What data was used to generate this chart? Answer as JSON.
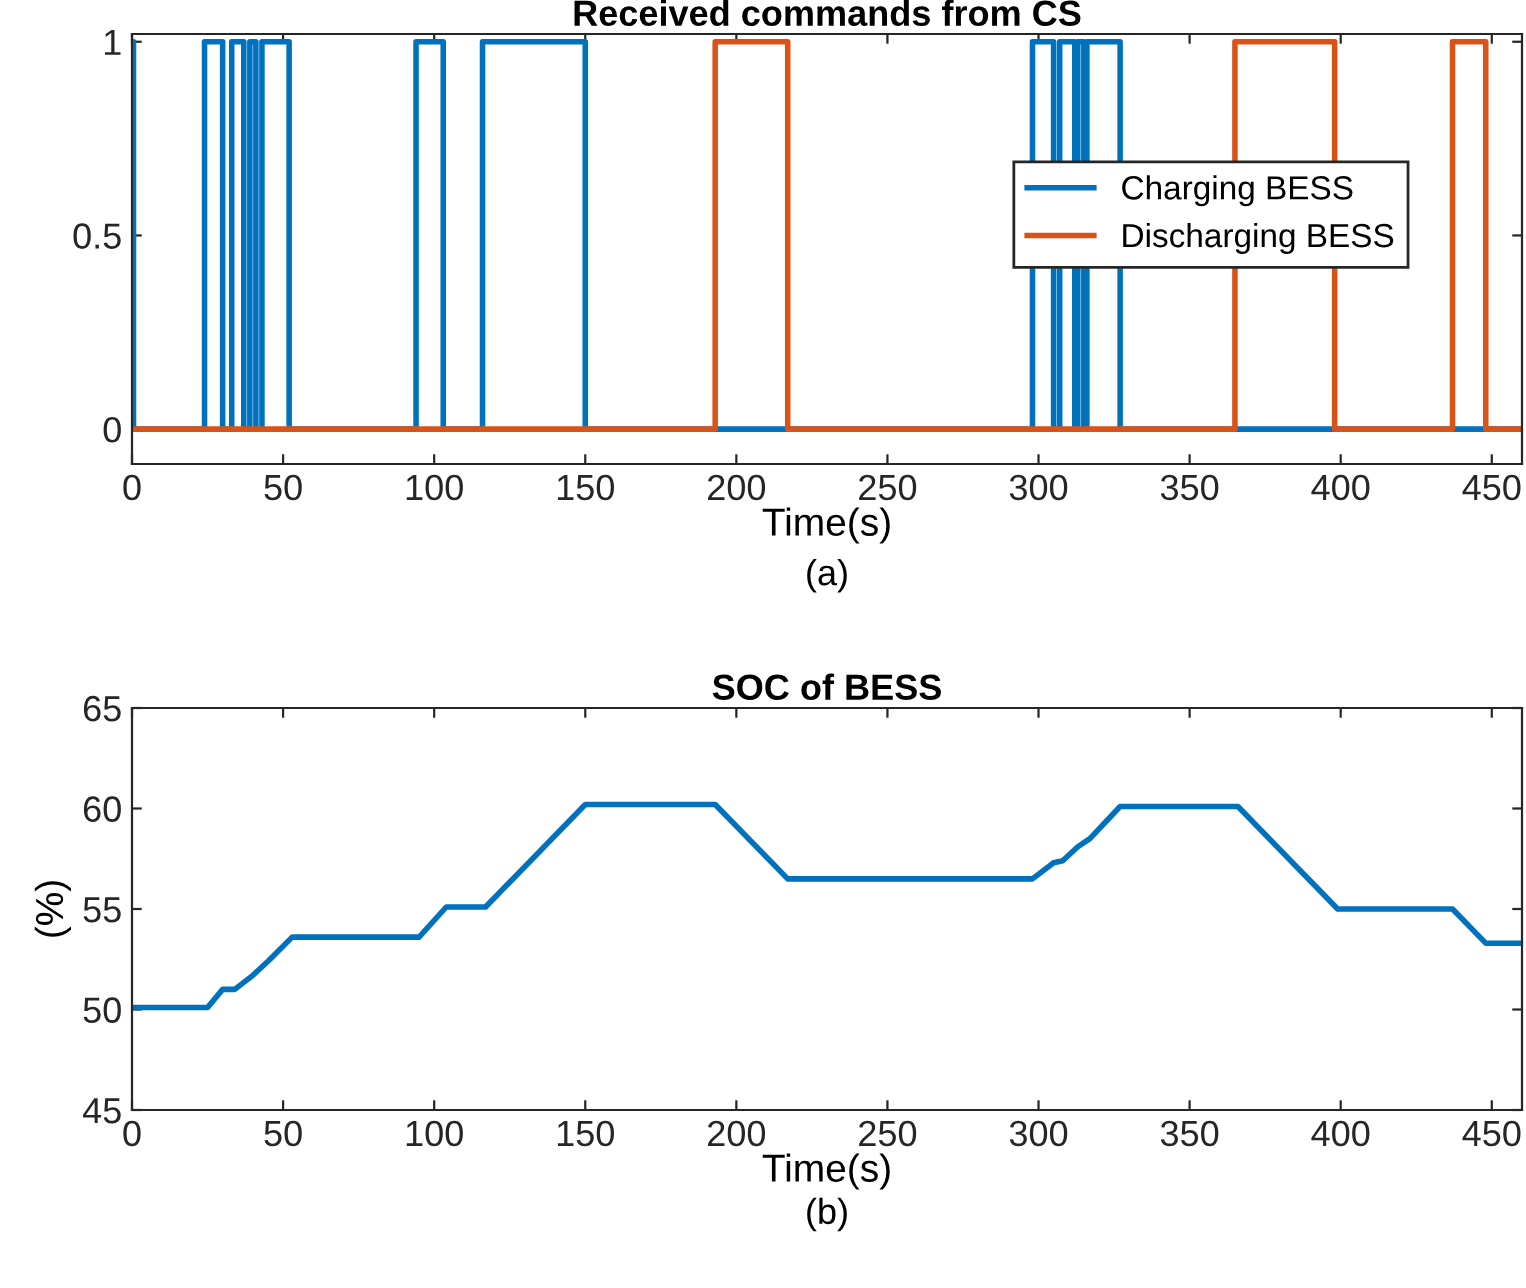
{
  "chart_data": [
    {
      "type": "step",
      "title": "Received commands from CS",
      "xlabel": "Time(s)",
      "annotations": [
        "(a)"
      ],
      "xlim": [
        0,
        460
      ],
      "xticks": [
        0,
        50,
        100,
        150,
        200,
        250,
        300,
        350,
        400,
        450
      ],
      "ylim": [
        -0.09,
        1.02
      ],
      "yticks": [
        0,
        0.5,
        1
      ],
      "grid": false,
      "legend": "right",
      "series": [
        {
          "name": "Charging BESS",
          "color": "#0072bd",
          "x": [
            0,
            0.5,
            24,
            30,
            33,
            37,
            39,
            41,
            43,
            52,
            94,
            103,
            116,
            150,
            298,
            305,
            307,
            312,
            313,
            315,
            316,
            327,
            460
          ],
          "values": [
            1,
            0,
            1,
            0,
            1,
            0,
            1,
            0,
            1,
            0,
            1,
            0,
            1,
            0,
            1,
            0,
            1,
            0,
            1,
            0,
            1,
            0,
            0
          ]
        },
        {
          "name": "Discharging BESS",
          "color": "#d95319",
          "x": [
            0,
            193,
            217,
            365,
            398,
            437,
            448,
            460
          ],
          "values": [
            0,
            1,
            0,
            1,
            0,
            1,
            0,
            0
          ]
        }
      ]
    },
    {
      "type": "line",
      "title": "SOC of BESS",
      "xlabel": "Time(s)",
      "ylabel": "(%)",
      "annotations": [
        "(b)"
      ],
      "xlim": [
        0,
        460
      ],
      "xticks": [
        0,
        50,
        100,
        150,
        200,
        250,
        300,
        350,
        400,
        450
      ],
      "ylim": [
        45,
        65
      ],
      "yticks": [
        45,
        50,
        55,
        60,
        65
      ],
      "grid": false,
      "series": [
        {
          "color": "#0072bd",
          "x": [
            0,
            25,
            30,
            34,
            40,
            45,
            53,
            95,
            104,
            117,
            150,
            193,
            217,
            298,
            305,
            308,
            313,
            317,
            327,
            366,
            399,
            437,
            448,
            460
          ],
          "values": [
            50.1,
            50.1,
            51,
            51,
            51.7,
            52.4,
            53.6,
            53.6,
            55.1,
            55.1,
            60.2,
            60.2,
            56.5,
            56.5,
            57.3,
            57.4,
            58.1,
            58.5,
            60.1,
            60.1,
            55,
            55,
            53.3,
            53.3
          ]
        }
      ]
    }
  ]
}
